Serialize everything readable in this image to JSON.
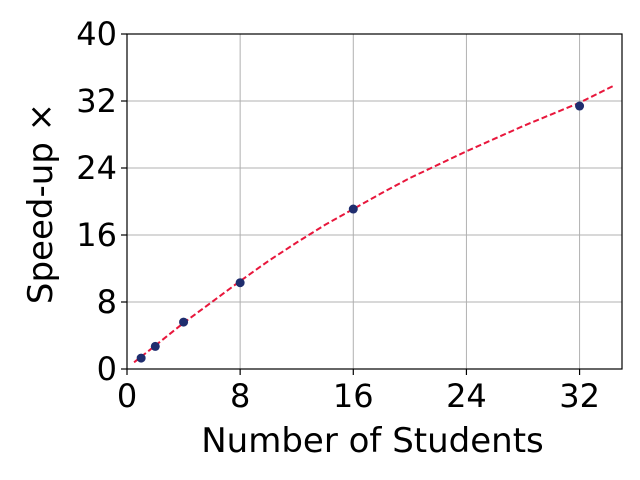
{
  "chart_data": {
    "type": "scatter",
    "title": "",
    "xlabel": "Number of Students",
    "ylabel": "Speed-up ×",
    "xlim": [
      0,
      35
    ],
    "ylim": [
      0,
      40
    ],
    "xticks": [
      0,
      8,
      16,
      24,
      32
    ],
    "yticks": [
      0,
      8,
      16,
      24,
      32,
      40
    ],
    "xtick_labels": [
      "0",
      "8",
      "16",
      "24",
      "32"
    ],
    "ytick_labels": [
      "0",
      "8",
      "16",
      "24",
      "32",
      "40"
    ],
    "grid": true,
    "series": [
      {
        "kind": "scatter",
        "x": [
          1,
          2,
          4,
          8,
          16,
          32
        ],
        "y": [
          1.3,
          2.7,
          5.6,
          10.3,
          19.1,
          31.4
        ],
        "color": "#1f2d6e"
      },
      {
        "kind": "fit-line",
        "x": [
          0.5,
          2,
          4,
          6,
          8,
          10,
          12,
          14,
          16,
          18,
          20,
          22,
          24,
          26,
          28,
          30,
          32,
          34.5
        ],
        "y": [
          0.8,
          2.8,
          5.5,
          8.0,
          10.5,
          12.9,
          15.1,
          17.2,
          19.1,
          21.0,
          22.8,
          24.4,
          26.0,
          27.5,
          29.0,
          30.4,
          31.8,
          33.9
        ],
        "color": "#e8173c",
        "dash": true
      }
    ]
  }
}
